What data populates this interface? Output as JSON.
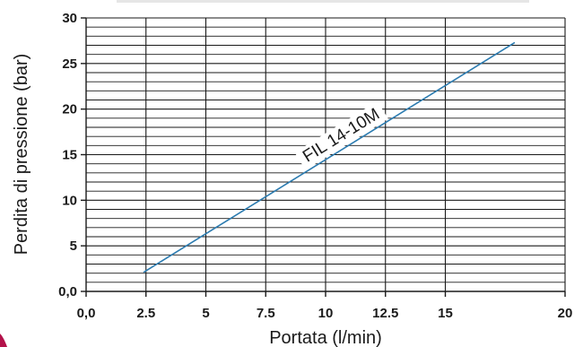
{
  "chart_data": {
    "type": "line",
    "xlabel": "Portata (l/min)",
    "ylabel": "Perdita di pressione (bar)",
    "xlim": [
      0,
      20
    ],
    "ylim": [
      0,
      30
    ],
    "x_ticks": [
      0,
      2.5,
      5,
      7.5,
      10,
      12.5,
      15,
      20
    ],
    "x_tick_labels": [
      "0,0",
      "2.5",
      "5",
      "7.5",
      "10",
      "12.5",
      "15",
      "20"
    ],
    "y_ticks": [
      0,
      5,
      10,
      15,
      20,
      25,
      30
    ],
    "y_tick_labels": [
      "0,0",
      "5",
      "10",
      "15",
      "20",
      "25",
      "30"
    ],
    "grid": true,
    "series": [
      {
        "name": "FIL 14-10M",
        "color": "#2b7bb0",
        "x": [
          2.4,
          17.9
        ],
        "y": [
          2.1,
          27.3
        ]
      }
    ]
  }
}
